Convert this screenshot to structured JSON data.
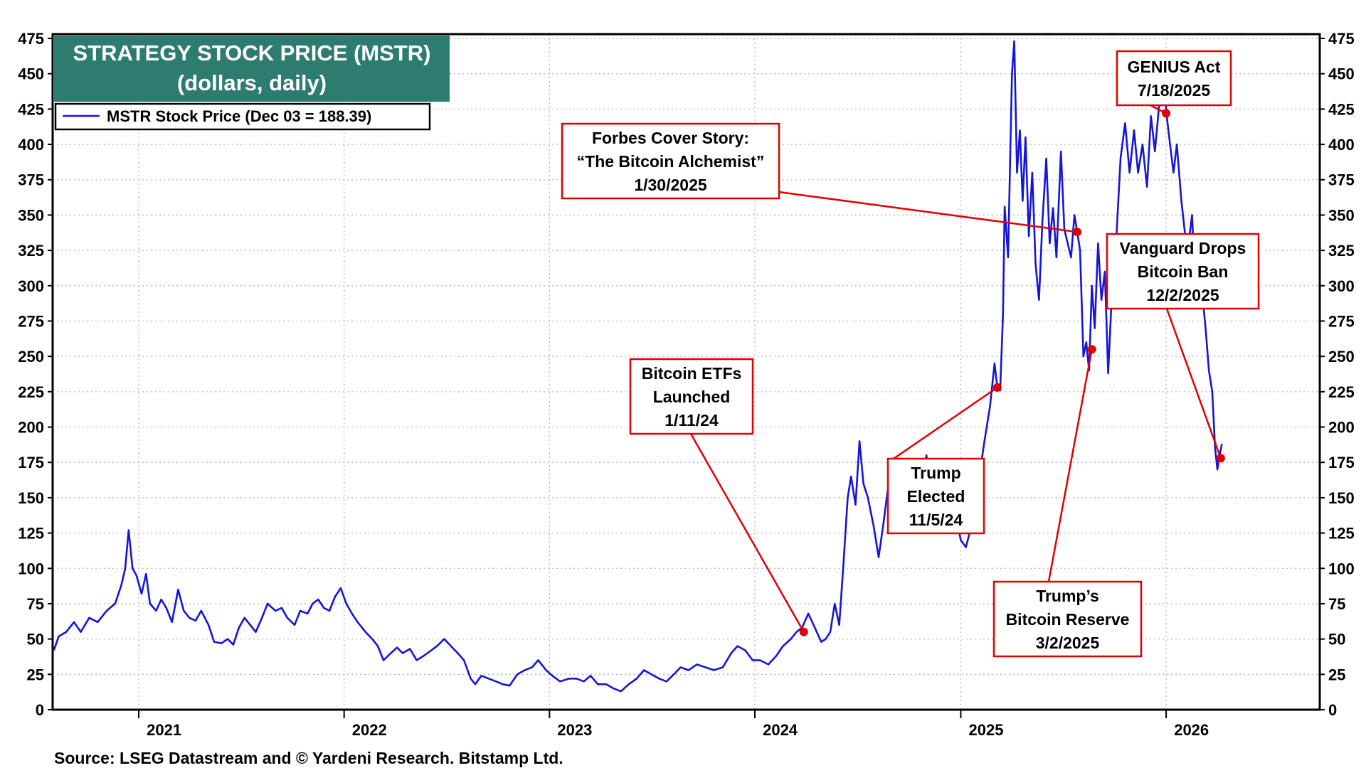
{
  "chart_data": {
    "type": "line",
    "title": "STRATEGY STOCK PRICE (MSTR)",
    "subtitle": "(dollars, daily)",
    "legend": {
      "label": "MSTR Stock Price (Dec 03 = 188.39)",
      "placement": "top-left"
    },
    "series_color": "#1515d8",
    "title_bg_color": "#2e7b70",
    "annotation_color": "#e00000",
    "source": "Source: LSEG Datastream and © Yardeni Research. Bitstamp Ltd.",
    "ylim": [
      0,
      475
    ],
    "yticks": [
      "475",
      "450",
      "425",
      "400",
      "375",
      "350",
      "325",
      "300",
      "275",
      "250",
      "225",
      "200",
      "175",
      "150",
      "125",
      "100",
      "75",
      "50",
      "25",
      "0"
    ],
    "xlim": [
      "2020-08-01",
      "2026-10-01"
    ],
    "xlabels": [
      {
        "label": "2021",
        "date": "2021-02-15"
      },
      {
        "label": "2022",
        "date": "2022-02-15"
      },
      {
        "label": "2023",
        "date": "2023-02-15"
      },
      {
        "label": "2024",
        "date": "2024-02-15"
      },
      {
        "label": "2025",
        "date": "2025-02-15"
      },
      {
        "label": "2026",
        "date": "2026-02-15"
      }
    ],
    "grid": true,
    "series": [
      {
        "name": "MSTR Stock Price (Dec 03 = 188.39)",
        "points": [
          [
            "2020-08-03",
            42
          ],
          [
            "2020-08-12",
            52
          ],
          [
            "2020-08-25",
            55
          ],
          [
            "2020-09-08",
            62
          ],
          [
            "2020-09-20",
            55
          ],
          [
            "2020-10-05",
            65
          ],
          [
            "2020-10-20",
            62
          ],
          [
            "2020-11-05",
            70
          ],
          [
            "2020-11-20",
            75
          ],
          [
            "2020-12-01",
            88
          ],
          [
            "2020-12-08",
            100
          ],
          [
            "2020-12-14",
            127
          ],
          [
            "2020-12-21",
            100
          ],
          [
            "2020-12-28",
            95
          ],
          [
            "2021-01-06",
            82
          ],
          [
            "2021-01-14",
            96
          ],
          [
            "2021-01-21",
            75
          ],
          [
            "2021-02-01",
            70
          ],
          [
            "2021-02-10",
            78
          ],
          [
            "2021-02-19",
            72
          ],
          [
            "2021-03-01",
            62
          ],
          [
            "2021-03-12",
            85
          ],
          [
            "2021-03-22",
            70
          ],
          [
            "2021-04-01",
            65
          ],
          [
            "2021-04-12",
            63
          ],
          [
            "2021-04-22",
            70
          ],
          [
            "2021-05-05",
            60
          ],
          [
            "2021-05-15",
            48
          ],
          [
            "2021-05-28",
            47
          ],
          [
            "2021-06-08",
            50
          ],
          [
            "2021-06-18",
            46
          ],
          [
            "2021-06-28",
            58
          ],
          [
            "2021-07-08",
            65
          ],
          [
            "2021-07-18",
            60
          ],
          [
            "2021-07-28",
            55
          ],
          [
            "2021-08-08",
            65
          ],
          [
            "2021-08-18",
            75
          ],
          [
            "2021-09-01",
            70
          ],
          [
            "2021-09-12",
            72
          ],
          [
            "2021-09-22",
            65
          ],
          [
            "2021-10-05",
            60
          ],
          [
            "2021-10-15",
            70
          ],
          [
            "2021-10-28",
            68
          ],
          [
            "2021-11-06",
            75
          ],
          [
            "2021-11-16",
            78
          ],
          [
            "2021-11-26",
            72
          ],
          [
            "2021-12-06",
            70
          ],
          [
            "2021-12-16",
            80
          ],
          [
            "2021-12-26",
            86
          ],
          [
            "2022-01-05",
            75
          ],
          [
            "2022-01-15",
            68
          ],
          [
            "2022-01-25",
            62
          ],
          [
            "2022-02-08",
            55
          ],
          [
            "2022-02-20",
            50
          ],
          [
            "2022-03-02",
            45
          ],
          [
            "2022-03-12",
            35
          ],
          [
            "2022-03-25",
            40
          ],
          [
            "2022-04-05",
            44
          ],
          [
            "2022-04-15",
            40
          ],
          [
            "2022-04-28",
            43
          ],
          [
            "2022-05-10",
            35
          ],
          [
            "2022-05-22",
            38
          ],
          [
            "2022-06-05",
            42
          ],
          [
            "2022-06-15",
            45
          ],
          [
            "2022-06-28",
            50
          ],
          [
            "2022-07-10",
            45
          ],
          [
            "2022-07-22",
            40
          ],
          [
            "2022-08-02",
            35
          ],
          [
            "2022-08-14",
            22
          ],
          [
            "2022-08-22",
            18
          ],
          [
            "2022-09-02",
            24
          ],
          [
            "2022-09-15",
            22
          ],
          [
            "2022-09-28",
            20
          ],
          [
            "2022-10-10",
            18
          ],
          [
            "2022-10-22",
            17
          ],
          [
            "2022-11-05",
            25
          ],
          [
            "2022-11-18",
            28
          ],
          [
            "2022-12-01",
            30
          ],
          [
            "2022-12-12",
            35
          ],
          [
            "2022-12-26",
            28
          ],
          [
            "2023-01-06",
            24
          ],
          [
            "2023-01-20",
            20
          ],
          [
            "2023-02-05",
            22
          ],
          [
            "2023-02-18",
            22
          ],
          [
            "2023-03-03",
            20
          ],
          [
            "2023-03-15",
            24
          ],
          [
            "2023-03-28",
            18
          ],
          [
            "2023-04-12",
            18
          ],
          [
            "2023-04-25",
            15
          ],
          [
            "2023-05-08",
            13
          ],
          [
            "2023-05-22",
            18
          ],
          [
            "2023-06-05",
            22
          ],
          [
            "2023-06-18",
            28
          ],
          [
            "2023-07-01",
            25
          ],
          [
            "2023-07-15",
            22
          ],
          [
            "2023-07-28",
            20
          ],
          [
            "2023-08-10",
            25
          ],
          [
            "2023-08-22",
            30
          ],
          [
            "2023-09-05",
            28
          ],
          [
            "2023-09-20",
            32
          ],
          [
            "2023-10-05",
            30
          ],
          [
            "2023-10-20",
            28
          ],
          [
            "2023-11-05",
            30
          ],
          [
            "2023-11-20",
            40
          ],
          [
            "2023-12-01",
            45
          ],
          [
            "2023-12-15",
            42
          ],
          [
            "2023-12-28",
            35
          ],
          [
            "2024-01-10",
            35
          ],
          [
            "2024-01-25",
            32
          ],
          [
            "2024-02-08",
            38
          ],
          [
            "2024-02-20",
            45
          ],
          [
            "2024-03-05",
            50
          ],
          [
            "2024-03-15",
            55
          ],
          [
            "2024-03-25",
            58
          ],
          [
            "2024-04-05",
            68
          ],
          [
            "2024-04-12",
            62
          ],
          [
            "2024-04-20",
            55
          ],
          [
            "2024-04-28",
            48
          ],
          [
            "2024-05-06",
            50
          ],
          [
            "2024-05-14",
            55
          ],
          [
            "2024-05-22",
            75
          ],
          [
            "2024-05-30",
            60
          ],
          [
            "2024-06-06",
            100
          ],
          [
            "2024-06-14",
            150
          ],
          [
            "2024-06-20",
            165
          ],
          [
            "2024-06-28",
            145
          ],
          [
            "2024-07-05",
            190
          ],
          [
            "2024-07-12",
            160
          ],
          [
            "2024-07-20",
            150
          ],
          [
            "2024-07-30",
            130
          ],
          [
            "2024-08-08",
            108
          ],
          [
            "2024-08-16",
            130
          ],
          [
            "2024-08-24",
            155
          ],
          [
            "2024-09-02",
            175
          ],
          [
            "2024-09-12",
            150
          ],
          [
            "2024-09-22",
            165
          ],
          [
            "2024-10-02",
            140
          ],
          [
            "2024-10-12",
            125
          ],
          [
            "2024-10-22",
            155
          ],
          [
            "2024-11-01",
            180
          ],
          [
            "2024-11-10",
            150
          ],
          [
            "2024-11-20",
            170
          ],
          [
            "2024-11-30",
            130
          ],
          [
            "2024-12-10",
            125
          ],
          [
            "2024-12-20",
            145
          ],
          [
            "2025-01-01",
            120
          ],
          [
            "2025-01-10",
            115
          ],
          [
            "2025-01-20",
            130
          ],
          [
            "2025-02-01",
            160
          ],
          [
            "2025-02-12",
            190
          ],
          [
            "2025-02-22",
            215
          ],
          [
            "2025-03-02",
            245
          ],
          [
            "2025-03-07",
            228
          ],
          [
            "2025-03-12",
            226
          ],
          [
            "2025-03-17",
            280
          ],
          [
            "2025-03-20",
            356
          ],
          [
            "2025-03-26",
            320
          ],
          [
            "2025-04-02",
            450
          ],
          [
            "2025-04-06",
            473
          ],
          [
            "2025-04-11",
            380
          ],
          [
            "2025-04-16",
            410
          ],
          [
            "2025-04-21",
            360
          ],
          [
            "2025-04-26",
            405
          ],
          [
            "2025-05-02",
            335
          ],
          [
            "2025-05-08",
            380
          ],
          [
            "2025-05-14",
            315
          ],
          [
            "2025-05-20",
            290
          ],
          [
            "2025-05-26",
            345
          ],
          [
            "2025-06-02",
            390
          ],
          [
            "2025-06-08",
            330
          ],
          [
            "2025-06-14",
            355
          ],
          [
            "2025-06-20",
            320
          ],
          [
            "2025-06-28",
            395
          ],
          [
            "2025-07-04",
            340
          ],
          [
            "2025-07-10",
            330
          ],
          [
            "2025-07-16",
            320
          ],
          [
            "2025-07-22",
            350
          ],
          [
            "2025-07-27",
            338
          ],
          [
            "2025-08-01",
            325
          ],
          [
            "2025-08-07",
            250
          ],
          [
            "2025-08-12",
            260
          ],
          [
            "2025-08-17",
            240
          ],
          [
            "2025-08-22",
            300
          ],
          [
            "2025-08-27",
            270
          ],
          [
            "2025-09-02",
            330
          ],
          [
            "2025-09-08",
            290
          ],
          [
            "2025-09-14",
            310
          ],
          [
            "2025-09-20",
            238
          ],
          [
            "2025-09-26",
            290
          ],
          [
            "2025-10-04",
            330
          ],
          [
            "2025-10-12",
            390
          ],
          [
            "2025-10-20",
            415
          ],
          [
            "2025-10-28",
            380
          ],
          [
            "2025-11-05",
            410
          ],
          [
            "2025-11-12",
            380
          ],
          [
            "2025-11-20",
            400
          ],
          [
            "2025-11-28",
            370
          ],
          [
            "2025-12-05",
            420
          ],
          [
            "2025-12-12",
            395
          ],
          [
            "2025-12-20",
            430
          ],
          [
            "2025-12-26",
            455
          ],
          [
            "2026-01-02",
            420
          ],
          [
            "2026-01-08",
            400
          ],
          [
            "2026-01-14",
            380
          ],
          [
            "2026-01-20",
            400
          ],
          [
            "2026-01-28",
            360
          ],
          [
            "2026-02-04",
            335
          ],
          [
            "2026-02-10",
            330
          ],
          [
            "2026-02-16",
            350
          ],
          [
            "2026-02-22",
            300
          ],
          [
            "2026-02-28",
            330
          ],
          [
            "2026-03-06",
            295
          ],
          [
            "2026-03-12",
            270
          ],
          [
            "2026-03-18",
            240
          ],
          [
            "2026-03-24",
            225
          ],
          [
            "2026-03-29",
            185
          ],
          [
            "2026-04-02",
            170
          ],
          [
            "2026-04-06",
            180
          ],
          [
            "2026-04-10",
            188
          ]
        ]
      }
    ],
    "annotations": [
      {
        "id": "bitcoin-etfs",
        "lines": [
          "Bitcoin ETFs",
          "Launched",
          "1/11/24"
        ],
        "point": [
          "2024-03-28",
          55
        ]
      },
      {
        "id": "trump-elected",
        "lines": [
          "Trump",
          "Elected",
          "11/5/24"
        ],
        "point": [
          "2025-03-07",
          228
        ]
      },
      {
        "id": "forbes",
        "lines": [
          "Forbes Cover Story:",
          "“The Bitcoin Alchemist”",
          "1/30/2025"
        ],
        "point": [
          "2025-07-27",
          338
        ]
      },
      {
        "id": "bitcoin-reserve",
        "lines": [
          "Trump’s",
          "Bitcoin Reserve",
          "3/2/2025"
        ],
        "point": [
          "2025-08-22",
          255
        ]
      },
      {
        "id": "genius-act",
        "lines": [
          "GENIUS Act",
          "7/18/2025"
        ],
        "point": [
          "2026-01-01",
          422
        ]
      },
      {
        "id": "vanguard",
        "lines": [
          "Vanguard Drops",
          "Bitcoin Ban",
          "12/2/2025"
        ],
        "point": [
          "2026-04-08",
          178
        ]
      }
    ]
  }
}
